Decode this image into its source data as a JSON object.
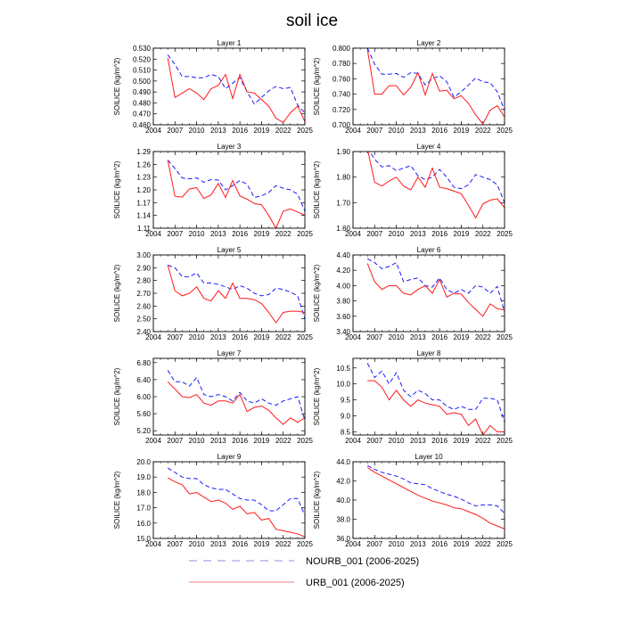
{
  "figure": {
    "title": "soil ice"
  },
  "colors": {
    "nourb": "#1a1aff",
    "urb": "#ff1a1a",
    "legend_nourb": "#8c8cd9",
    "legend_urb": "#f08080"
  },
  "legend": [
    {
      "label": "NOURB_001 (2006-2025)",
      "style": "dashed"
    },
    {
      "label": "URB_001 (2006-2025)",
      "style": "solid"
    }
  ],
  "chart_data": [
    {
      "type": "line",
      "title": "Layer 1",
      "ylabel": "SOILICE  (kg/m^2)",
      "xlim": [
        2004,
        2025
      ],
      "xticks": [
        "2004",
        "2007",
        "2010",
        "2013",
        "2016",
        "2019",
        "2022",
        "2025"
      ],
      "ylim": [
        0.46,
        0.53
      ],
      "yticks": [
        "0.460",
        "0.470",
        "0.480",
        "0.490",
        "0.500",
        "0.510",
        "0.520",
        "0.530"
      ],
      "x": [
        2006,
        2007,
        2008,
        2009,
        2010,
        2011,
        2012,
        2013,
        2014,
        2015,
        2016,
        2017,
        2018,
        2019,
        2020,
        2021,
        2022,
        2023,
        2024,
        2025
      ],
      "series": [
        {
          "name": "NOURB_001 (2006-2025)",
          "style": "dashed",
          "values": [
            0.524,
            0.515,
            0.504,
            0.504,
            0.503,
            0.503,
            0.506,
            0.504,
            0.493,
            0.498,
            0.503,
            0.49,
            0.479,
            0.485,
            0.491,
            0.495,
            0.493,
            0.494,
            0.478,
            0.471
          ]
        },
        {
          "name": "URB_001 (2006-2025)",
          "style": "solid",
          "values": [
            0.521,
            0.485,
            0.489,
            0.493,
            0.489,
            0.483,
            0.493,
            0.496,
            0.506,
            0.484,
            0.506,
            0.49,
            0.489,
            0.483,
            0.477,
            0.466,
            0.462,
            0.471,
            0.477,
            0.463
          ]
        }
      ]
    },
    {
      "type": "line",
      "title": "Layer 2",
      "ylabel": "SOILICE  (kg/m^2)",
      "xlim": [
        2004,
        2025
      ],
      "xticks": [
        "2004",
        "2007",
        "2010",
        "2013",
        "2016",
        "2019",
        "2022",
        "2025"
      ],
      "ylim": [
        0.7,
        0.8
      ],
      "yticks": [
        "0.700",
        "0.720",
        "0.740",
        "0.760",
        "0.780",
        "0.800"
      ],
      "x": [
        2006,
        2007,
        2008,
        2009,
        2010,
        2011,
        2012,
        2013,
        2014,
        2015,
        2016,
        2017,
        2018,
        2019,
        2020,
        2021,
        2022,
        2023,
        2024,
        2025
      ],
      "series": [
        {
          "name": "NOURB_001 (2006-2025)",
          "style": "dashed",
          "values": [
            0.8,
            0.779,
            0.766,
            0.766,
            0.767,
            0.762,
            0.768,
            0.767,
            0.752,
            0.76,
            0.764,
            0.756,
            0.736,
            0.743,
            0.752,
            0.761,
            0.756,
            0.755,
            0.743,
            0.719
          ]
        },
        {
          "name": "URB_001 (2006-2025)",
          "style": "solid",
          "values": [
            0.798,
            0.74,
            0.74,
            0.751,
            0.751,
            0.739,
            0.749,
            0.768,
            0.739,
            0.767,
            0.744,
            0.745,
            0.734,
            0.738,
            0.728,
            0.713,
            0.701,
            0.719,
            0.725,
            0.71
          ]
        }
      ]
    },
    {
      "type": "line",
      "title": "Layer 3",
      "ylabel": "SOILICE  (kg/m^2)",
      "xlim": [
        2004,
        2025
      ],
      "xticks": [
        "2004",
        "2007",
        "2010",
        "2013",
        "2016",
        "2019",
        "2022",
        "2025"
      ],
      "ylim": [
        1.11,
        1.29
      ],
      "yticks": [
        "1.11",
        "1.14",
        "1.17",
        "1.20",
        "1.23",
        "1.26",
        "1.29"
      ],
      "x": [
        2006,
        2007,
        2008,
        2009,
        2010,
        2011,
        2012,
        2013,
        2014,
        2015,
        2016,
        2017,
        2018,
        2019,
        2020,
        2021,
        2022,
        2023,
        2024,
        2025
      ],
      "series": [
        {
          "name": "NOURB_001 (2006-2025)",
          "style": "dashed",
          "values": [
            1.27,
            1.25,
            1.228,
            1.226,
            1.228,
            1.218,
            1.224,
            1.223,
            1.2,
            1.21,
            1.222,
            1.213,
            1.182,
            1.186,
            1.194,
            1.21,
            1.204,
            1.2,
            1.19,
            1.15
          ]
        },
        {
          "name": "URB_001 (2006-2025)",
          "style": "solid",
          "values": [
            1.27,
            1.185,
            1.183,
            1.202,
            1.205,
            1.18,
            1.188,
            1.215,
            1.182,
            1.222,
            1.186,
            1.178,
            1.168,
            1.165,
            1.14,
            1.11,
            1.15,
            1.155,
            1.148,
            1.14
          ]
        }
      ]
    },
    {
      "type": "line",
      "title": "Layer 4",
      "ylabel": "SOILICE  (kg/m^2)",
      "xlim": [
        2004,
        2025
      ],
      "xticks": [
        "2004",
        "2007",
        "2010",
        "2013",
        "2016",
        "2019",
        "2022",
        "2025"
      ],
      "ylim": [
        1.6,
        1.9
      ],
      "yticks": [
        "1.60",
        "1.70",
        "1.80",
        "1.90"
      ],
      "x": [
        2006,
        2007,
        2008,
        2009,
        2010,
        2011,
        2012,
        2013,
        2014,
        2015,
        2016,
        2017,
        2018,
        2019,
        2020,
        2021,
        2022,
        2023,
        2024,
        2025
      ],
      "series": [
        {
          "name": "NOURB_001 (2006-2025)",
          "style": "dashed",
          "values": [
            1.915,
            1.87,
            1.84,
            1.845,
            1.825,
            1.835,
            1.845,
            1.805,
            1.79,
            1.8,
            1.83,
            1.8,
            1.76,
            1.755,
            1.77,
            1.81,
            1.8,
            1.79,
            1.77,
            1.7
          ]
        },
        {
          "name": "URB_001 (2006-2025)",
          "style": "solid",
          "values": [
            1.91,
            1.78,
            1.765,
            1.785,
            1.8,
            1.765,
            1.75,
            1.8,
            1.76,
            1.835,
            1.76,
            1.755,
            1.745,
            1.735,
            1.69,
            1.64,
            1.695,
            1.71,
            1.715,
            1.68
          ]
        }
      ]
    },
    {
      "type": "line",
      "title": "Layer 5",
      "ylabel": "SOILICE  (kg/m^2)",
      "xlim": [
        2004,
        2025
      ],
      "xticks": [
        "2004",
        "2007",
        "2010",
        "2013",
        "2016",
        "2019",
        "2022",
        "2025"
      ],
      "ylim": [
        2.4,
        3.0
      ],
      "yticks": [
        "2.40",
        "2.50",
        "2.60",
        "2.70",
        "2.80",
        "2.90",
        "3.00"
      ],
      "x": [
        2006,
        2007,
        2008,
        2009,
        2010,
        2011,
        2012,
        2013,
        2014,
        2015,
        2016,
        2017,
        2018,
        2019,
        2020,
        2021,
        2022,
        2023,
        2024,
        2025
      ],
      "series": [
        {
          "name": "NOURB_001 (2006-2025)",
          "style": "dashed",
          "values": [
            2.92,
            2.9,
            2.83,
            2.83,
            2.86,
            2.78,
            2.78,
            2.77,
            2.75,
            2.73,
            2.76,
            2.74,
            2.7,
            2.68,
            2.69,
            2.74,
            2.73,
            2.71,
            2.68,
            2.5
          ]
        },
        {
          "name": "URB_001 (2006-2025)",
          "style": "solid",
          "values": [
            2.92,
            2.72,
            2.68,
            2.7,
            2.75,
            2.66,
            2.64,
            2.72,
            2.66,
            2.78,
            2.66,
            2.66,
            2.65,
            2.62,
            2.55,
            2.47,
            2.55,
            2.56,
            2.56,
            2.55
          ]
        }
      ]
    },
    {
      "type": "line",
      "title": "Layer 6",
      "ylabel": "SOILICE  (kg/m^2)",
      "xlim": [
        2004,
        2025
      ],
      "xticks": [
        "2004",
        "2007",
        "2010",
        "2013",
        "2016",
        "2019",
        "2022",
        "2025"
      ],
      "ylim": [
        3.4,
        4.4
      ],
      "yticks": [
        "3.40",
        "3.60",
        "3.80",
        "4.00",
        "4.20",
        "4.40"
      ],
      "x": [
        2006,
        2007,
        2008,
        2009,
        2010,
        2011,
        2012,
        2013,
        2014,
        2015,
        2016,
        2017,
        2018,
        2019,
        2020,
        2021,
        2022,
        2023,
        2024,
        2025
      ],
      "series": [
        {
          "name": "NOURB_001 (2006-2025)",
          "style": "dashed",
          "values": [
            4.35,
            4.3,
            4.22,
            4.25,
            4.3,
            4.05,
            4.08,
            4.1,
            4.0,
            3.98,
            4.1,
            3.95,
            3.9,
            3.95,
            3.9,
            4.0,
            3.98,
            3.9,
            3.99,
            3.65
          ]
        },
        {
          "name": "URB_001 (2006-2025)",
          "style": "solid",
          "values": [
            4.29,
            4.05,
            3.95,
            4.0,
            4.0,
            3.9,
            3.88,
            3.95,
            4.0,
            3.9,
            4.08,
            3.85,
            3.9,
            3.89,
            3.78,
            3.69,
            3.6,
            3.76,
            3.7,
            3.68
          ]
        }
      ]
    },
    {
      "type": "line",
      "title": "Layer 7",
      "ylabel": "SOILICE  (kg/m^2)",
      "xlim": [
        2004,
        2025
      ],
      "xticks": [
        "2004",
        "2007",
        "2010",
        "2013",
        "2016",
        "2019",
        "2022",
        "2025"
      ],
      "ylim": [
        5.1,
        6.9
      ],
      "yticks": [
        "5.20",
        "5.60",
        "6.00",
        "6.40",
        "6.80"
      ],
      "x": [
        2006,
        2007,
        2008,
        2009,
        2010,
        2011,
        2012,
        2013,
        2014,
        2015,
        2016,
        2017,
        2018,
        2019,
        2020,
        2021,
        2022,
        2023,
        2024,
        2025
      ],
      "series": [
        {
          "name": "NOURB_001 (2006-2025)",
          "style": "dashed",
          "values": [
            6.62,
            6.35,
            6.35,
            6.25,
            6.45,
            6.05,
            6.0,
            6.05,
            6.0,
            5.9,
            6.1,
            5.9,
            5.85,
            5.95,
            5.85,
            5.8,
            5.9,
            5.95,
            6.0,
            5.45
          ]
        },
        {
          "name": "URB_001 (2006-2025)",
          "style": "solid",
          "values": [
            6.35,
            6.18,
            6.0,
            5.98,
            6.05,
            5.85,
            5.8,
            5.9,
            5.9,
            5.85,
            6.05,
            5.65,
            5.75,
            5.78,
            5.68,
            5.5,
            5.35,
            5.5,
            5.4,
            5.5
          ]
        }
      ]
    },
    {
      "type": "line",
      "title": "Layer 8",
      "ylabel": "SOILICE  (kg/m^2)",
      "xlim": [
        2004,
        2025
      ],
      "xticks": [
        "2004",
        "2007",
        "2010",
        "2013",
        "2016",
        "2019",
        "2022",
        "2025"
      ],
      "ylim": [
        8.4,
        10.8
      ],
      "yticks": [
        "8.5",
        "9.0",
        "9.5",
        "10.0",
        "10.5"
      ],
      "x": [
        2006,
        2007,
        2008,
        2009,
        2010,
        2011,
        2012,
        2013,
        2014,
        2015,
        2016,
        2017,
        2018,
        2019,
        2020,
        2021,
        2022,
        2023,
        2024,
        2025
      ],
      "series": [
        {
          "name": "NOURB_001 (2006-2025)",
          "style": "dashed",
          "values": [
            10.65,
            10.2,
            10.4,
            10.0,
            10.35,
            9.8,
            9.6,
            9.8,
            9.7,
            9.5,
            9.5,
            9.3,
            9.2,
            9.3,
            9.2,
            9.2,
            9.55,
            9.55,
            9.5,
            8.8
          ]
        },
        {
          "name": "URB_001 (2006-2025)",
          "style": "solid",
          "values": [
            10.1,
            10.1,
            9.9,
            9.5,
            9.8,
            9.5,
            9.3,
            9.5,
            9.4,
            9.35,
            9.3,
            9.05,
            9.1,
            9.05,
            8.7,
            8.9,
            8.4,
            8.7,
            8.5,
            8.5
          ]
        }
      ]
    },
    {
      "type": "line",
      "title": "Layer 9",
      "ylabel": "SOILICE  (kg/m^2)",
      "xlim": [
        2004,
        2025
      ],
      "xticks": [
        "2004",
        "2007",
        "2010",
        "2013",
        "2016",
        "2019",
        "2022",
        "2025"
      ],
      "ylim": [
        15.0,
        20.0
      ],
      "yticks": [
        "15.0",
        "16.0",
        "17.0",
        "18.0",
        "19.0",
        "20.0"
      ],
      "x": [
        2006,
        2007,
        2008,
        2009,
        2010,
        2011,
        2012,
        2013,
        2014,
        2015,
        2016,
        2017,
        2018,
        2019,
        2020,
        2021,
        2022,
        2023,
        2024,
        2025
      ],
      "series": [
        {
          "name": "NOURB_001 (2006-2025)",
          "style": "dashed",
          "values": [
            19.6,
            19.3,
            19.0,
            18.9,
            18.9,
            18.5,
            18.3,
            18.2,
            18.2,
            17.9,
            17.6,
            17.5,
            17.5,
            17.2,
            16.8,
            16.8,
            17.2,
            17.6,
            17.6,
            16.5
          ]
        },
        {
          "name": "URB_001 (2006-2025)",
          "style": "solid",
          "values": [
            18.95,
            18.7,
            18.5,
            17.9,
            18.0,
            17.7,
            17.4,
            17.5,
            17.3,
            16.9,
            17.1,
            16.6,
            16.7,
            16.2,
            16.3,
            15.6,
            15.5,
            15.4,
            15.3,
            15.1
          ]
        }
      ]
    },
    {
      "type": "line",
      "title": "Layer 10",
      "ylabel": "SOILICE  (kg/m^2)",
      "xlim": [
        2004,
        2025
      ],
      "xticks": [
        "2004",
        "2007",
        "2010",
        "2013",
        "2016",
        "2019",
        "2022",
        "2025"
      ],
      "ylim": [
        36.0,
        44.0
      ],
      "yticks": [
        "36.0",
        "38.0",
        "40.0",
        "42.0",
        "44.0"
      ],
      "x": [
        2006,
        2007,
        2008,
        2009,
        2010,
        2011,
        2012,
        2013,
        2014,
        2015,
        2016,
        2017,
        2018,
        2019,
        2020,
        2021,
        2022,
        2023,
        2024,
        2025
      ],
      "series": [
        {
          "name": "NOURB_001 (2006-2025)",
          "style": "dashed",
          "values": [
            43.6,
            43.2,
            42.9,
            42.7,
            42.5,
            42.2,
            41.8,
            41.7,
            41.6,
            41.2,
            40.9,
            40.6,
            40.4,
            40.1,
            39.7,
            39.4,
            39.5,
            39.5,
            39.4,
            38.6
          ]
        },
        {
          "name": "URB_001 (2006-2025)",
          "style": "solid",
          "values": [
            43.4,
            42.9,
            42.5,
            42.1,
            41.7,
            41.3,
            40.9,
            40.5,
            40.2,
            39.9,
            39.7,
            39.5,
            39.2,
            39.1,
            38.8,
            38.5,
            38.1,
            37.6,
            37.3,
            37.0
          ]
        }
      ]
    }
  ]
}
